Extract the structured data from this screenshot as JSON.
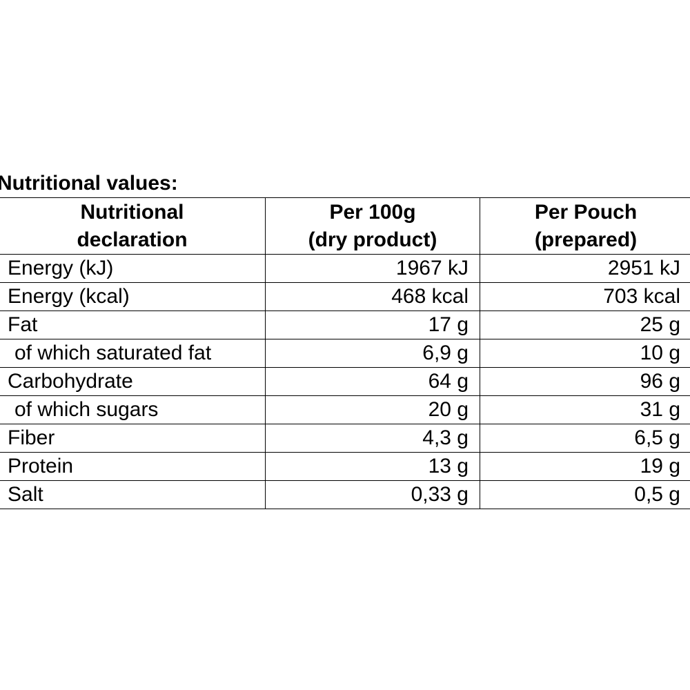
{
  "title": "Nutritional values:",
  "header": {
    "col1": [
      "Nutritional",
      "declaration"
    ],
    "col2": [
      "Per 100g",
      "(dry product)"
    ],
    "col3": [
      "Per Pouch",
      "(prepared)"
    ]
  },
  "rows": [
    {
      "label": "Energy (kJ)",
      "per100g": "1967 kJ",
      "perPouch": "2951 kJ"
    },
    {
      "label": "Energy (kcal)",
      "per100g": "468 kcal",
      "perPouch": "703 kcal"
    },
    {
      "label": "Fat",
      "per100g": "17 g",
      "perPouch": "25 g"
    },
    {
      "label": "of which saturated fat",
      "per100g": "6,9 g",
      "perPouch": "10 g"
    },
    {
      "label": "Carbohydrate",
      "per100g": "64 g",
      "perPouch": "96 g"
    },
    {
      "label": "of which sugars",
      "per100g": "20 g",
      "perPouch": "31 g"
    },
    {
      "label": "Fiber",
      "per100g": "4,3 g",
      "perPouch": "6,5 g"
    },
    {
      "label": "Protein",
      "per100g": "13 g",
      "perPouch": "19 g"
    },
    {
      "label": "Salt",
      "per100g": "0,33 g",
      "perPouch": "0,5 g"
    }
  ]
}
